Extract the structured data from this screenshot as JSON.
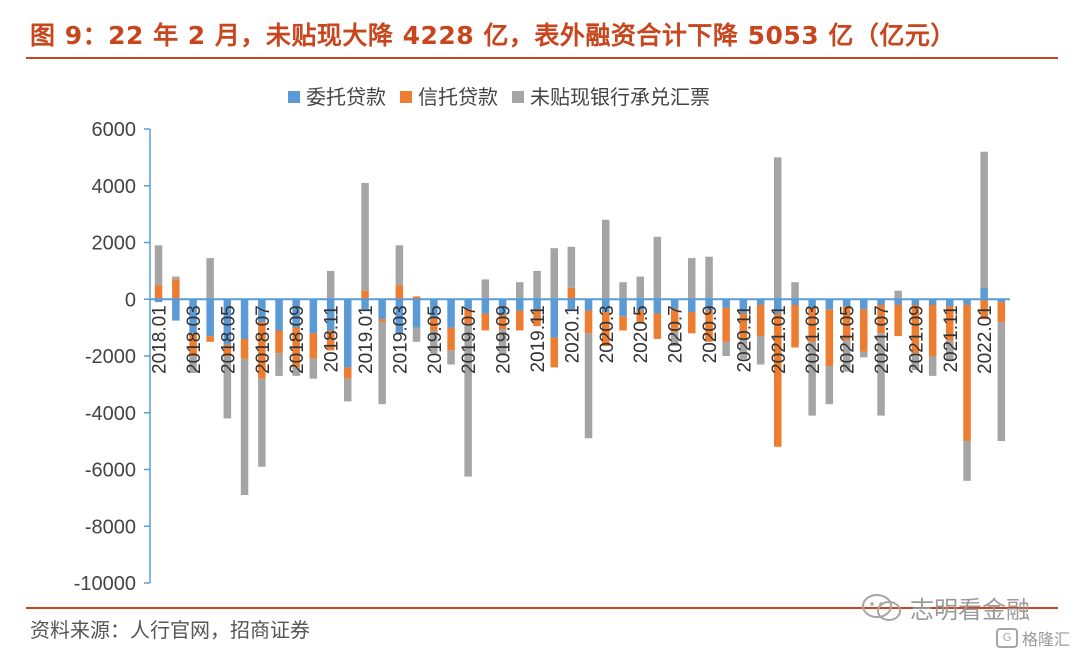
{
  "title": "图 9：22 年 2 月，未贴现大降 4228 亿，表外融资合计下降 5053 亿（亿元）",
  "source": "资料来源：人行官网，招商证券",
  "watermark": "志明看金融",
  "brand": "格隆汇",
  "colors": {
    "title": "#c8461e",
    "entrusted": "#5b9bd5",
    "trust": "#ed7d31",
    "undiscounted": "#a5a5a5"
  },
  "chart_data": {
    "type": "bar",
    "stacked": true,
    "legend_position": "top",
    "grid": false,
    "ylim": [
      -10000,
      6000
    ],
    "yticks": [
      6000,
      4000,
      2000,
      0,
      -2000,
      -4000,
      -6000,
      -8000,
      -10000
    ],
    "categories": [
      "2018.01",
      "2018.02",
      "2018.03",
      "2018.04",
      "2018.05",
      "2018.06",
      "2018.07",
      "2018.08",
      "2018.09",
      "2018.10",
      "2018.11",
      "2018.12",
      "2019.01",
      "2019.02",
      "2019.03",
      "2019.04",
      "2019.05",
      "2019.06",
      "2019.07",
      "2019.08",
      "2019.09",
      "2019.10",
      "2019.11",
      "2019.12",
      "2020.1",
      "2020.2",
      "2020.3",
      "2020.4",
      "2020.5",
      "2020.6",
      "2020.7",
      "2020.8",
      "2020.9",
      "2020.10",
      "2020.11",
      "2020.12",
      "2021.01",
      "2021.02",
      "2021.03",
      "2021.04",
      "2021.05",
      "2021.06",
      "2021.07",
      "2021.08",
      "2021.09",
      "2021.10",
      "2021.11",
      "2021.12",
      "2022.01",
      "2022.02"
    ],
    "tick_labels": [
      "2018.01",
      "2018.03",
      "2018.05",
      "2018.07",
      "2018.09",
      "2018.11",
      "2019.01",
      "2019.03",
      "2019.05",
      "2019.07",
      "2019.09",
      "2019.11",
      "2020.1",
      "2020.3",
      "2020.5",
      "2020.7",
      "2020.9",
      "2020.11",
      "2021.01",
      "2021.03",
      "2021.05",
      "2021.07",
      "2021.09",
      "2021.11",
      "2022.01"
    ],
    "series": [
      {
        "name": "委托贷款",
        "values": [
          -100,
          -750,
          -1200,
          -1300,
          -1600,
          -1400,
          -800,
          -1100,
          -1000,
          -1200,
          -1100,
          -2400,
          -350,
          -700,
          -1200,
          -1000,
          -650,
          -1000,
          -350,
          -500,
          -550,
          -400,
          -350,
          -1350,
          -350,
          -400,
          -450,
          -600,
          -400,
          -500,
          -350,
          -450,
          -400,
          -300,
          -500,
          -200,
          -500,
          -200,
          -300,
          -350,
          -250,
          -350,
          -200,
          -200,
          -200,
          -200,
          -250,
          -200,
          400,
          -100
        ]
      },
      {
        "name": "信托贷款",
        "values": [
          500,
          700,
          -800,
          -200,
          -400,
          -700,
          -2000,
          -800,
          -1400,
          -900,
          -700,
          -400,
          300,
          -100,
          500,
          100,
          -450,
          -800,
          -500,
          -600,
          -500,
          -700,
          -600,
          -1050,
          400,
          -800,
          -1200,
          -500,
          -400,
          -900,
          -800,
          -750,
          -1100,
          -1200,
          -900,
          -1100,
          -4700,
          -1500,
          -1200,
          -2000,
          -1200,
          -1500,
          -1000,
          -1100,
          -1700,
          -1800,
          -1200,
          -4800,
          -700,
          -700
        ]
      },
      {
        "name": "未贴现银行承兑汇票",
        "values": [
          1400,
          100,
          -600,
          1450,
          -2200,
          -4800,
          -3100,
          -800,
          -300,
          -700,
          1000,
          -800,
          3800,
          -2900,
          1400,
          -500,
          -800,
          -500,
          -5400,
          700,
          -900,
          600,
          1000,
          1800,
          1450,
          -3700,
          2800,
          600,
          800,
          2200,
          -500,
          1450,
          1500,
          -500,
          -700,
          -1000,
          5000,
          600,
          -2600,
          -1350,
          -1100,
          -200,
          -2900,
          300,
          -600,
          -700,
          -700,
          -1400,
          4800,
          -4200
        ]
      }
    ]
  }
}
